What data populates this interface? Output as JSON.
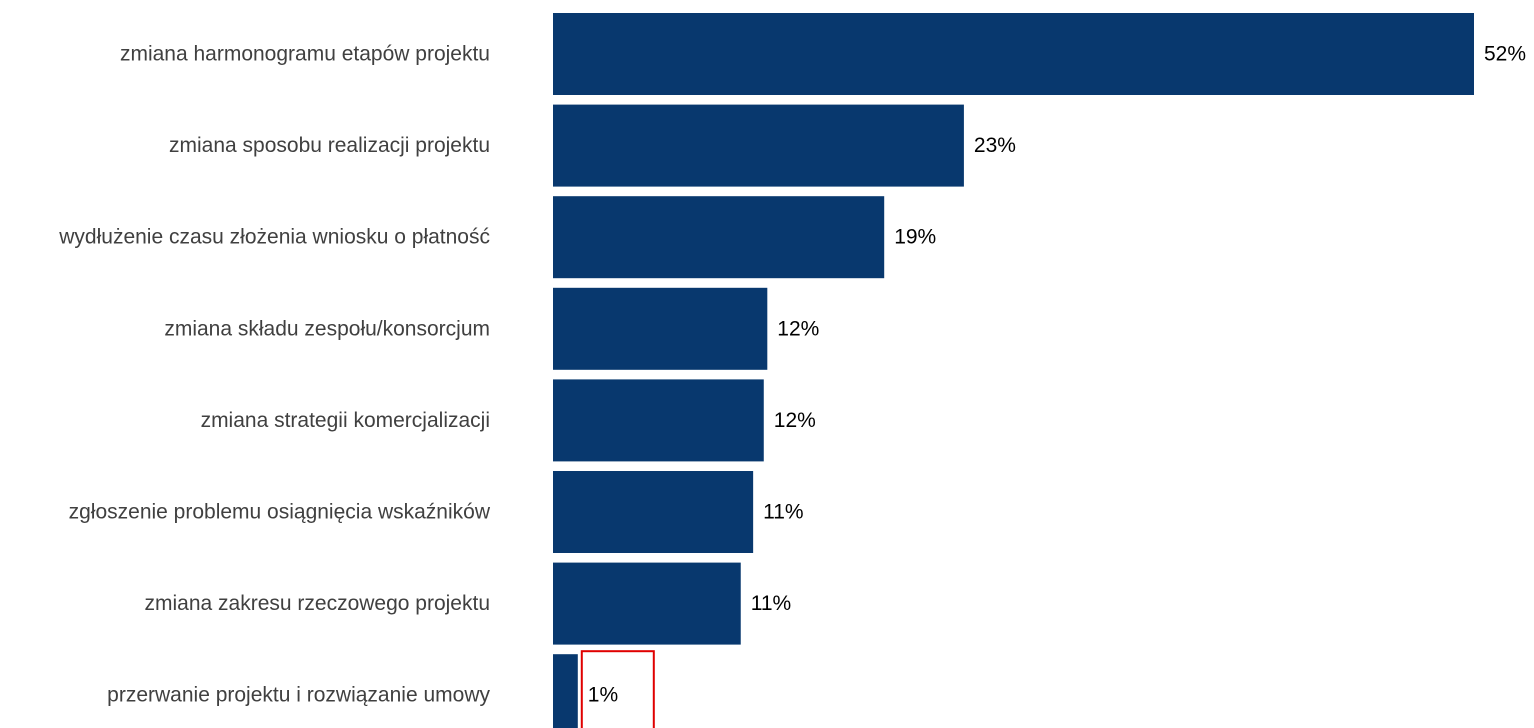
{
  "chart_data": {
    "type": "bar",
    "orientation": "horizontal",
    "categories": [
      "zmiana harmonogramu etapów projektu",
      "zmiana sposobu realizacji projektu",
      "wydłużenie czasu złożenia wniosku o płatność",
      "zmiana składu zespołu/konsorcjum",
      "zmiana strategii komercjalizacji",
      "zgłoszenie problemu osiągnięcia wskaźników",
      "zmiana zakresu rzeczowego projektu",
      "przerwanie projektu i rozwiązanie umowy"
    ],
    "values": [
      52,
      23.2,
      18.7,
      12.1,
      11.9,
      11.3,
      10.6,
      1.4
    ],
    "value_labels": [
      "52%",
      "23%",
      "19%",
      "12%",
      "12%",
      "11%",
      "11%",
      "1%"
    ],
    "xlim": [
      0,
      52
    ],
    "grid": false,
    "legend": "none",
    "bar_color": "#08386E",
    "highlight": {
      "index": 7,
      "color": "#E00000"
    }
  }
}
